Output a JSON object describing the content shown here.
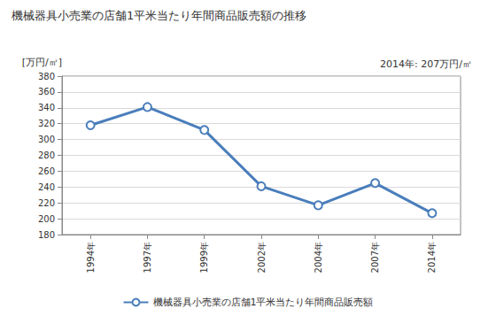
{
  "chart_data": {
    "type": "line",
    "title": "機械器具小売業の店舗1平米当たり年間商品販売額の推移",
    "ylabel": "[万円/㎡]",
    "annotations": [
      "2014年: 207万円/㎡"
    ],
    "categories": [
      "1994年",
      "1997年",
      "1999年",
      "2002年",
      "2004年",
      "2007年",
      "2014年"
    ],
    "series": [
      {
        "name": "機械器具小売業の店舗1平米当たり年間商品販売額",
        "color": "#4a7ebb",
        "values": [
          318,
          341,
          312,
          241,
          217,
          245,
          207
        ]
      }
    ],
    "ylim": [
      180,
      380
    ],
    "yticks": [
      180,
      200,
      220,
      240,
      260,
      280,
      300,
      320,
      340,
      360,
      380
    ],
    "grid": true,
    "legend": "bottom",
    "marker": "circle"
  }
}
